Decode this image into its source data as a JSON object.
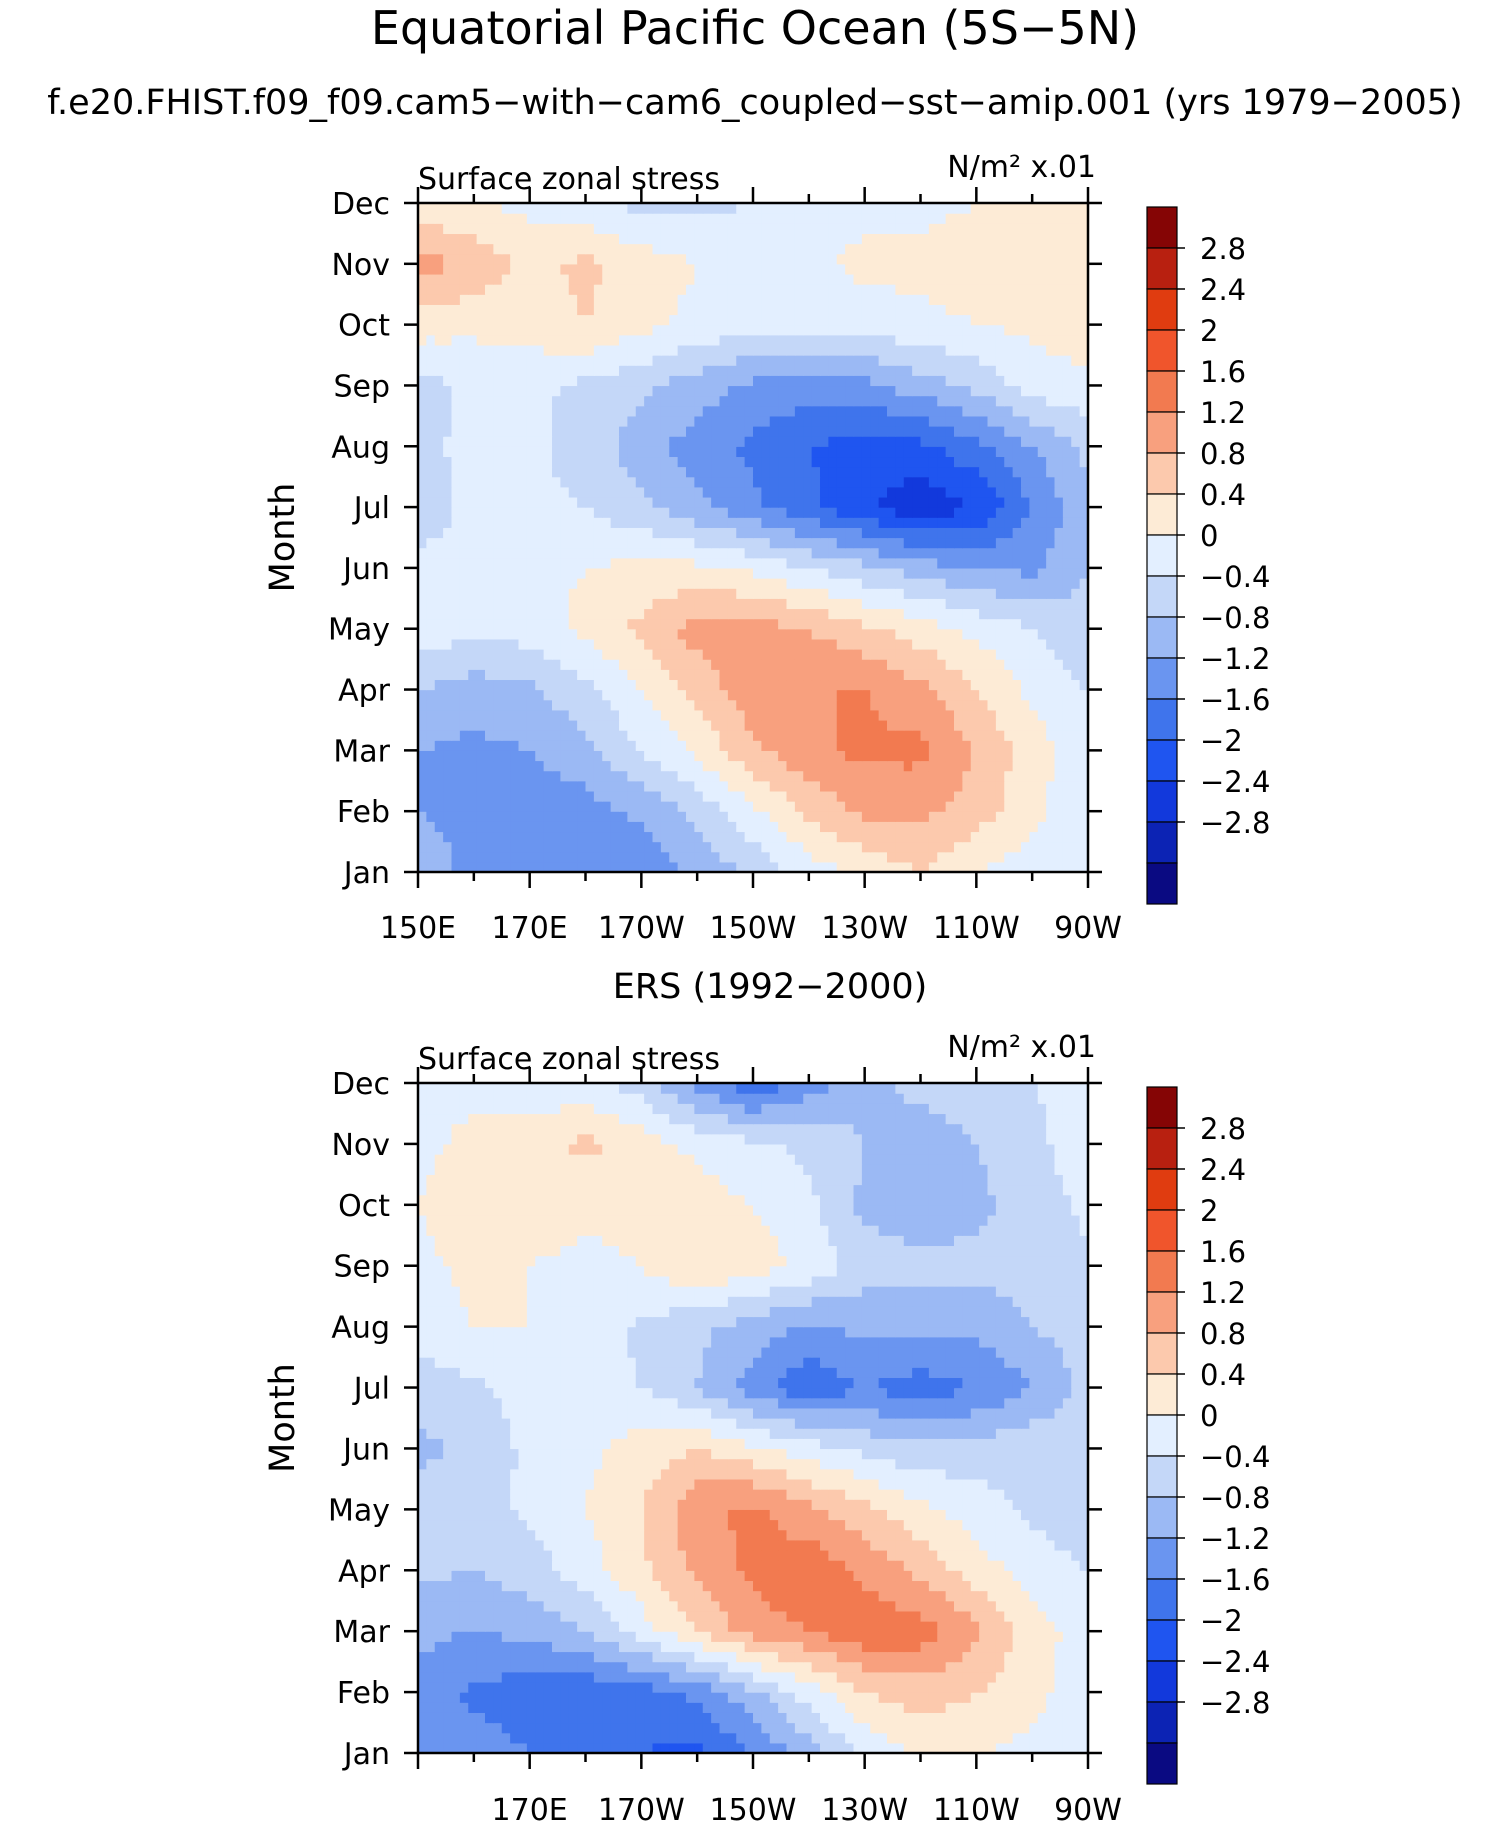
{
  "page": {
    "title": "Equatorial Pacific Ocean (5S−5N)",
    "subtitle": "f.e20.FHIST.f09_f09.cam5−with−cam6_coupled−sst−amip.001 (yrs 1979−2005)"
  },
  "colorbar": {
    "labels": [
      "2.8",
      "2.4",
      "2",
      "1.6",
      "1.2",
      "0.8",
      "0.4",
      "0",
      "−0.4",
      "−0.8",
      "−1.2",
      "−1.6",
      "−2",
      "−2.4",
      "−2.8"
    ],
    "colors": [
      "#0a0a82",
      "#0c23b4",
      "#1239dc",
      "#1f55f0",
      "#3f74ec",
      "#6a95f0",
      "#9bb9f4",
      "#c4d7f8",
      "#e3efff",
      "#fdebd6",
      "#fcc9ad",
      "#f8a07e",
      "#f27a50",
      "#f0552c",
      "#e03c10",
      "#b82010",
      "#850505"
    ],
    "levels": [
      -2.8,
      -2.4,
      -2,
      -1.6,
      -1.2,
      -0.8,
      -0.4,
      0,
      0.4,
      0.8,
      1.2,
      1.6,
      2,
      2.4,
      2.8
    ]
  },
  "chart_data": [
    {
      "type": "heatmap",
      "title": "",
      "left_label": "Surface zonal stress",
      "right_label": "N/m² x.01",
      "ylabel": "Month",
      "xlabel": "",
      "x": [
        "150E",
        "170E",
        "170W",
        "150W",
        "130W",
        "110W",
        "90W"
      ],
      "x_values": [
        150,
        170,
        190,
        210,
        230,
        250,
        270
      ],
      "x_tick_labels": [
        "150E",
        "170E",
        "170W",
        "150W",
        "130W",
        "110W",
        "90W"
      ],
      "y": [
        "Jan",
        "Feb",
        "Mar",
        "Apr",
        "May",
        "Jun",
        "Jul",
        "Aug",
        "Sep",
        "Oct",
        "Nov",
        "Dec"
      ],
      "xlim": [
        150,
        270
      ],
      "grid": false,
      "columns": [
        150,
        160,
        170,
        180,
        190,
        200,
        210,
        220,
        230,
        240,
        250,
        260,
        270
      ],
      "values": [
        [
          -0.6,
          -0.9,
          -0.9,
          -1.1,
          -1.1,
          -0.7,
          -0.3,
          0.2,
          0.5,
          0.8,
          0.4,
          0.2,
          0.1
        ],
        [
          -0.8,
          -0.9,
          -1.0,
          -1.0,
          -0.7,
          -0.3,
          0.3,
          0.9,
          1.3,
          1.3,
          1.0,
          0.5,
          0.1
        ],
        [
          -0.8,
          -0.9,
          -0.8,
          -0.5,
          0.0,
          0.5,
          1.1,
          1.5,
          1.7,
          1.7,
          1.2,
          0.6,
          0.1
        ],
        [
          -0.4,
          -0.6,
          -0.5,
          -0.1,
          0.4,
          0.9,
          1.5,
          1.6,
          1.6,
          1.3,
          0.8,
          0.3,
          0.0
        ],
        [
          0.3,
          0.1,
          0.2,
          0.5,
          0.9,
          1.4,
          1.4,
          1.2,
          0.9,
          0.6,
          0.3,
          0.0,
          -0.3
        ],
        [
          0.1,
          0.1,
          0.3,
          0.4,
          0.5,
          0.5,
          0.3,
          0.0,
          -0.3,
          -0.6,
          -0.8,
          -0.9,
          -0.4
        ],
        [
          -0.2,
          0.1,
          0.1,
          0.0,
          -0.3,
          -0.7,
          -1.1,
          -1.5,
          -1.9,
          -2.3,
          -2.0,
          -1.2,
          -0.5
        ],
        [
          -0.1,
          0.1,
          0.1,
          -0.2,
          -0.6,
          -1.0,
          -1.3,
          -1.6,
          -1.8,
          -1.7,
          -1.3,
          -0.8,
          -0.3
        ],
        [
          -0.2,
          0.1,
          0.1,
          -0.1,
          -0.3,
          -0.6,
          -0.9,
          -1.0,
          -0.9,
          -0.6,
          -0.3,
          0.2,
          0.3
        ],
        [
          0.6,
          0.5,
          0.6,
          0.8,
          0.5,
          0.3,
          0.1,
          0.1,
          0.2,
          0.3,
          0.4,
          0.5,
          0.6
        ],
        [
          1.4,
          1.1,
          0.7,
          0.9,
          0.6,
          0.4,
          0.3,
          0.3,
          0.5,
          0.5,
          0.6,
          0.6,
          0.6
        ],
        [
          0.5,
          0.4,
          0.3,
          0.1,
          -0.1,
          -0.1,
          0.0,
          0.2,
          0.3,
          0.3,
          0.4,
          0.4,
          0.4
        ]
      ]
    },
    {
      "type": "heatmap",
      "title": "ERS (1992−2000)",
      "left_label": "Surface zonal stress",
      "right_label": "N/m² x.01",
      "ylabel": "Month",
      "xlabel": "",
      "x": [
        "170E",
        "170W",
        "150W",
        "130W",
        "110W",
        "90W"
      ],
      "x_values": [
        170,
        190,
        210,
        230,
        250,
        270
      ],
      "x_tick_labels": [
        "170E",
        "170W",
        "150W",
        "130W",
        "110W",
        "90W"
      ],
      "y": [
        "Jan",
        "Feb",
        "Mar",
        "Apr",
        "May",
        "Jun",
        "Jul",
        "Aug",
        "Sep",
        "Oct",
        "Nov",
        "Dec"
      ],
      "xlim": [
        150,
        270
      ],
      "grid": false,
      "columns": [
        150,
        160,
        170,
        180,
        190,
        200,
        210,
        220,
        230,
        240,
        250,
        260,
        270
      ],
      "values": [
        [
          -0.8,
          -1.0,
          -1.2,
          -1.5,
          -1.6,
          -1.7,
          -1.2,
          -0.6,
          0.1,
          0.5,
          0.4,
          0.3,
          0.1
        ],
        [
          -0.9,
          -1.3,
          -1.4,
          -1.5,
          -1.4,
          -1.1,
          -0.5,
          0.2,
          0.8,
          1.0,
          0.8,
          0.5,
          0.2
        ],
        [
          -0.7,
          -0.8,
          -0.7,
          -0.4,
          0.2,
          0.8,
          1.4,
          1.6,
          1.9,
          1.8,
          1.3,
          0.6,
          0.2
        ],
        [
          -0.3,
          -0.4,
          -0.2,
          0.2,
          0.7,
          1.3,
          1.7,
          1.9,
          1.5,
          1.1,
          0.6,
          0.2,
          0.0
        ],
        [
          -0.2,
          -0.2,
          0.1,
          0.4,
          0.8,
          1.5,
          1.7,
          1.3,
          0.9,
          0.5,
          0.2,
          -0.1,
          -0.2
        ],
        [
          -0.5,
          -0.3,
          0.1,
          0.3,
          0.6,
          0.8,
          0.5,
          0.2,
          -0.1,
          -0.3,
          -0.2,
          -0.1,
          -0.1
        ],
        [
          -0.2,
          -0.1,
          0.2,
          0.2,
          0.0,
          -0.4,
          -1.0,
          -1.5,
          -1.2,
          -1.4,
          -1.2,
          -0.8,
          -0.3
        ],
        [
          0.2,
          0.4,
          0.4,
          0.3,
          -0.1,
          -0.3,
          -0.6,
          -0.9,
          -0.7,
          -0.7,
          -0.7,
          -0.4,
          -0.2
        ],
        [
          0.3,
          0.5,
          0.4,
          0.3,
          0.4,
          0.8,
          0.6,
          0.3,
          -0.2,
          -0.3,
          -0.3,
          -0.2,
          -0.1
        ],
        [
          0.4,
          0.6,
          0.6,
          0.5,
          0.5,
          0.6,
          0.4,
          0.1,
          -0.5,
          -0.6,
          -0.5,
          -0.2,
          0.1
        ],
        [
          0.3,
          0.5,
          0.6,
          0.9,
          0.6,
          0.3,
          0.1,
          -0.1,
          -0.4,
          -0.6,
          -0.4,
          -0.1,
          0.2
        ],
        [
          0.3,
          0.3,
          0.2,
          0.1,
          -0.2,
          -0.9,
          -1.5,
          -1.0,
          -0.5,
          -0.3,
          -0.2,
          0.0,
          0.1
        ]
      ]
    }
  ]
}
